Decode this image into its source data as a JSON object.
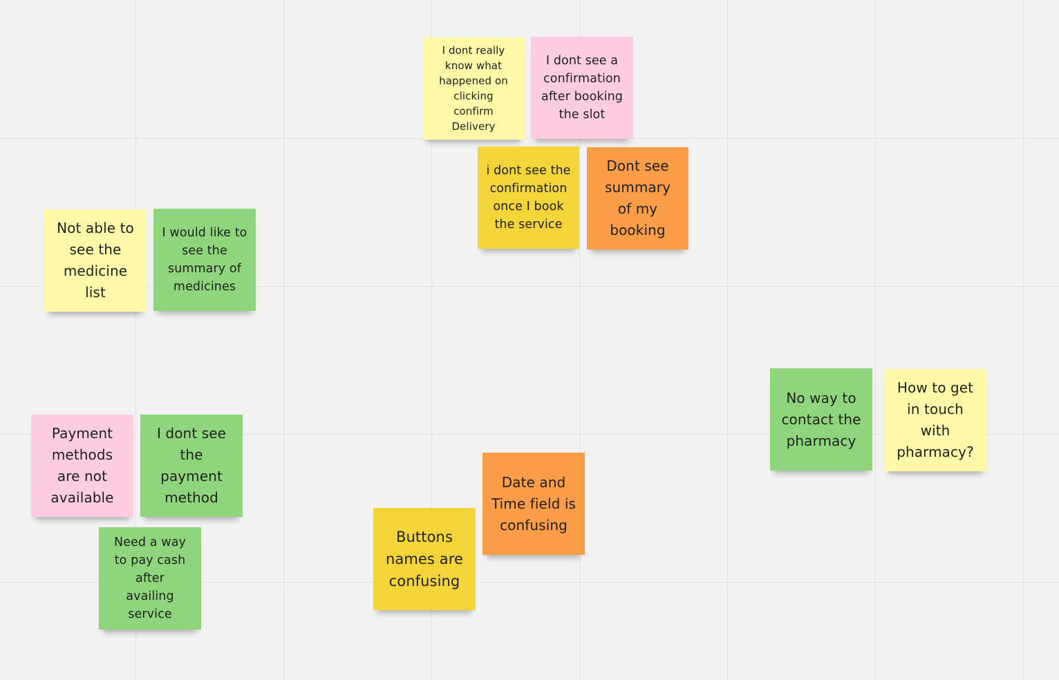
{
  "board": {
    "background": "#f2f2f2",
    "grid_line_color": "#e1e1e1"
  },
  "notes": [
    {
      "text": "I dont really know what happened on clicking confirm Delivery",
      "color": "#fef9a9"
    },
    {
      "text": "I dont see a confirmation after booking the slot",
      "color": "#fbcce3"
    },
    {
      "text": "i dont see the confirmation once I book the service",
      "color": "#f3d53a"
    },
    {
      "text": "Dont see summary of my booking",
      "color": "#fb9c46"
    },
    {
      "text": "Not able to see the medicine list",
      "color": "#fef9a9"
    },
    {
      "text": "I would like to see the summary of medicines",
      "color": "#8fd57b"
    },
    {
      "text": "Payment methods are not available",
      "color": "#fbcce3"
    },
    {
      "text": "I dont see the payment method",
      "color": "#8fd57b"
    },
    {
      "text": "Need a way to pay cash after availing service",
      "color": "#8fd57b"
    },
    {
      "text": "Buttons names are confusing",
      "color": "#f3d53a"
    },
    {
      "text": "Date and Time field is confusing",
      "color": "#fb9c46"
    },
    {
      "text": "No way to contact the pharmacy",
      "color": "#8fd57b"
    },
    {
      "text": "How to get in touch with pharmacy?",
      "color": "#fef9a9"
    }
  ]
}
